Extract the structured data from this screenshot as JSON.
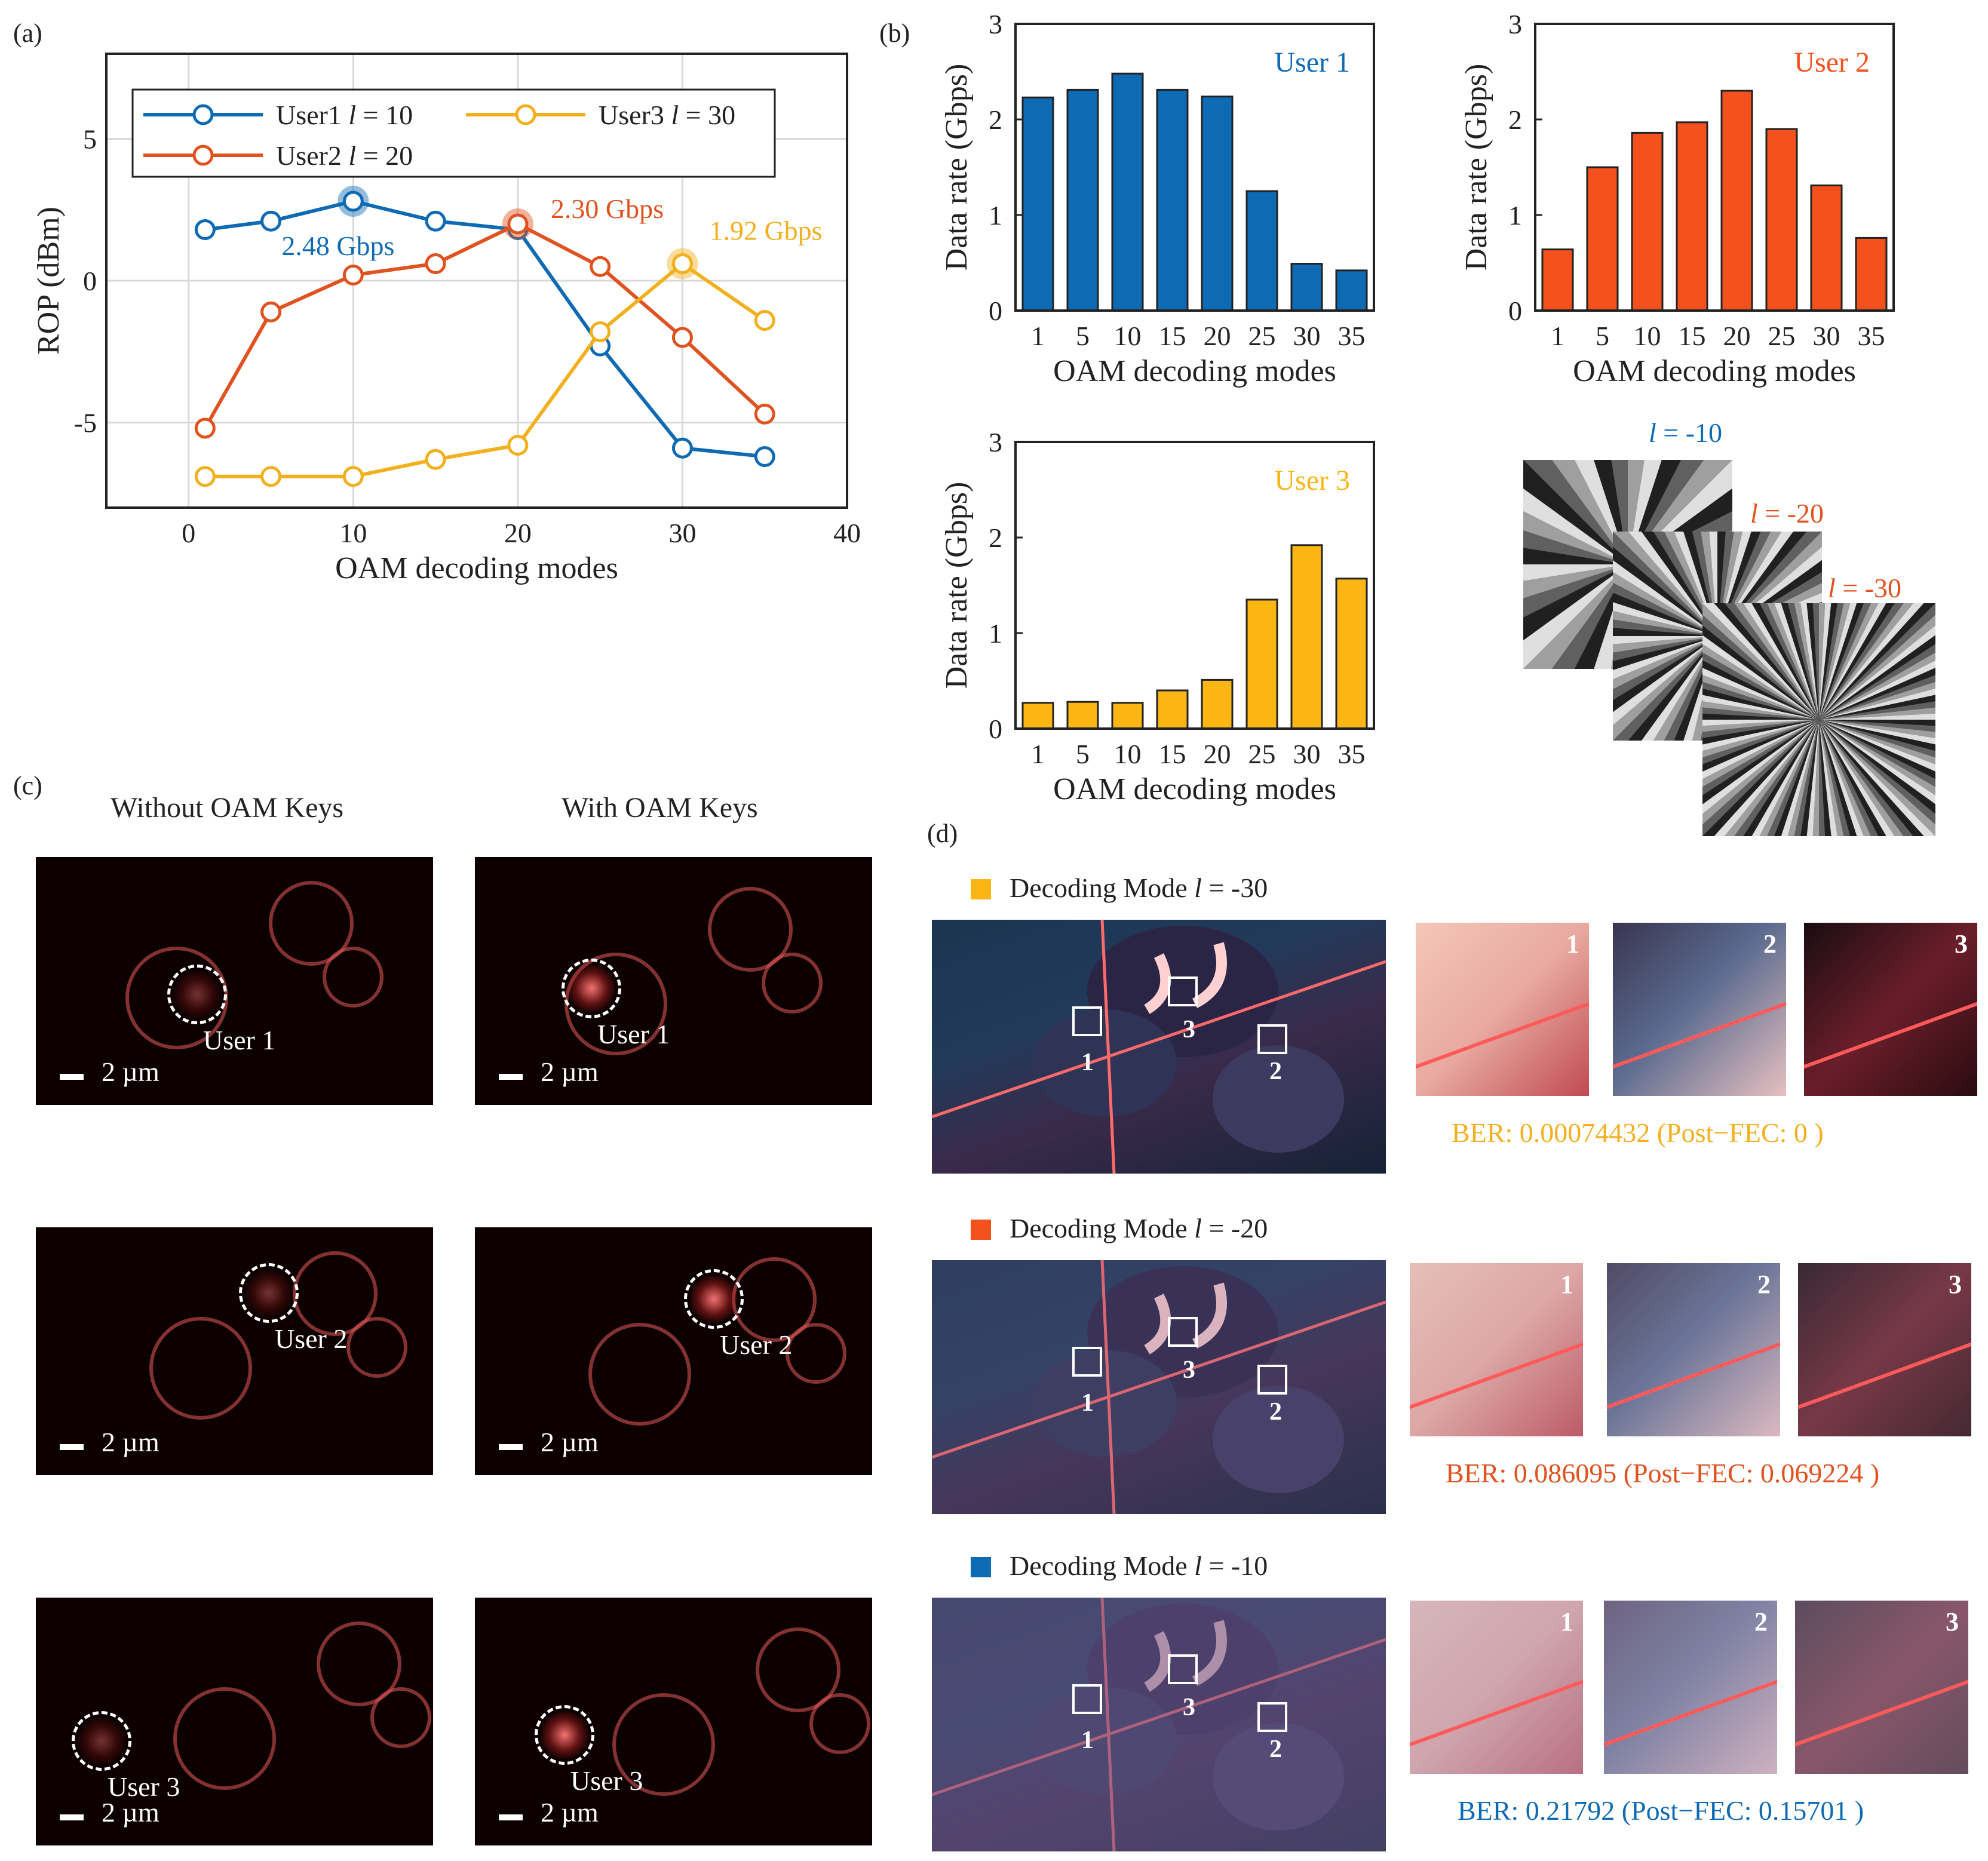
{
  "panels": {
    "a": "(a)",
    "b": "(b)",
    "c": "(c)",
    "d": "(d)"
  },
  "chart_data": [
    {
      "id": "a",
      "type": "line",
      "xlabel": "OAM decoding modes",
      "ylabel": "ROP (dBm)",
      "xlim": [
        -5,
        40
      ],
      "ylim": [
        -8,
        8
      ],
      "xticks": [
        0,
        10,
        20,
        30,
        40
      ],
      "yticks": [
        -5,
        0,
        5
      ],
      "grid": true,
      "legend_position": "top",
      "series": [
        {
          "name_prefix": "User1 ",
          "name_italic": "l",
          "name_suffix": " = 10",
          "color": "#0f6ab4",
          "x": [
            1,
            5,
            10,
            15,
            20,
            25,
            30,
            35
          ],
          "y": [
            1.8,
            2.1,
            2.8,
            2.1,
            1.8,
            -2.3,
            -5.9,
            -6.2
          ],
          "peak_x": 10,
          "peak_y": 2.8,
          "annotation": "2.48 Gbps"
        },
        {
          "name_prefix": "User2 ",
          "name_italic": "l",
          "name_suffix": " = 20",
          "color": "#e0521f",
          "x": [
            1,
            5,
            10,
            15,
            20,
            25,
            30,
            35
          ],
          "y": [
            -5.2,
            -1.1,
            0.2,
            0.6,
            2.0,
            0.5,
            -2.0,
            -4.7
          ],
          "peak_x": 20,
          "peak_y": 2.0,
          "annotation": "2.30 Gbps"
        },
        {
          "name_prefix": "User3 ",
          "name_italic": "l",
          "name_suffix": " = 30",
          "color": "#f2b01e",
          "x": [
            1,
            5,
            10,
            15,
            20,
            25,
            30,
            35
          ],
          "y": [
            -6.9,
            -6.9,
            -6.9,
            -6.3,
            -5.8,
            -1.8,
            0.6,
            -1.4
          ],
          "peak_x": 30,
          "peak_y": 0.6,
          "annotation": "1.92 Gbps"
        }
      ]
    },
    {
      "id": "b1",
      "type": "bar",
      "title": "User 1",
      "color": "#0f6ab4",
      "categories": [
        "1",
        "5",
        "10",
        "15",
        "20",
        "25",
        "30",
        "35"
      ],
      "values": [
        2.23,
        2.31,
        2.48,
        2.31,
        2.24,
        1.25,
        0.49,
        0.42
      ],
      "xlabel": "OAM decoding modes",
      "ylabel": "Data rate (Gbps)",
      "ylim": [
        0,
        3
      ],
      "yticks": [
        0,
        1,
        2,
        3
      ]
    },
    {
      "id": "b2",
      "type": "bar",
      "title": "User 2",
      "color": "#f4511e",
      "categories": [
        "1",
        "5",
        "10",
        "15",
        "20",
        "25",
        "30",
        "35"
      ],
      "values": [
        0.64,
        1.5,
        1.86,
        1.97,
        2.3,
        1.9,
        1.31,
        0.76
      ],
      "xlabel": "OAM decoding modes",
      "ylabel": "Data rate (Gbps)",
      "ylim": [
        0,
        3
      ],
      "yticks": [
        0,
        1,
        2,
        3
      ]
    },
    {
      "id": "b3",
      "type": "bar",
      "title": "User 3",
      "color": "#fbb614",
      "categories": [
        "1",
        "5",
        "10",
        "15",
        "20",
        "25",
        "30",
        "35"
      ],
      "values": [
        0.27,
        0.28,
        0.27,
        0.4,
        0.51,
        1.35,
        1.92,
        1.57
      ],
      "xlabel": "OAM decoding modes",
      "ylabel": "Data rate (Gbps)",
      "ylim": [
        0,
        3
      ],
      "yticks": [
        0,
        1,
        2,
        3
      ]
    }
  ],
  "phase_masks": [
    {
      "italic": "l",
      "text": " = -10",
      "color": "#0f6ab4",
      "spokes": 10
    },
    {
      "italic": "l",
      "text": " = -20",
      "color": "#e0521f",
      "spokes": 20
    },
    {
      "italic": "l",
      "text": " = -30",
      "color": "#e0521f",
      "spokes": 30
    }
  ],
  "panel_c": {
    "col_without": "Without OAM Keys",
    "col_with": "With OAM Keys",
    "scale": "2 µm",
    "users": [
      "User 1",
      "User 2",
      "User 3"
    ]
  },
  "panel_d": {
    "rows": [
      {
        "label_prefix": "Decoding Mode ",
        "label_italic": "l",
        "label_suffix": " = -30",
        "swatch": "#fbb614",
        "ber": "BER: 0.00074432 (Post−FEC: 0 )",
        "ber_color": "#f2b01e"
      },
      {
        "label_prefix": "Decoding Mode ",
        "label_italic": "l",
        "label_suffix": " = -20",
        "swatch": "#f4511e",
        "ber": "BER: 0.086095 (Post−FEC: 0.069224 )",
        "ber_color": "#e0521f"
      },
      {
        "label_prefix": "Decoding Mode ",
        "label_italic": "l",
        "label_suffix": " = -10",
        "swatch": "#0f6ab4",
        "ber": "BER: 0.21792 (Post−FEC: 0.15701 )",
        "ber_color": "#0f6ab4"
      }
    ],
    "crop_numbers": [
      "1",
      "2",
      "3"
    ]
  }
}
